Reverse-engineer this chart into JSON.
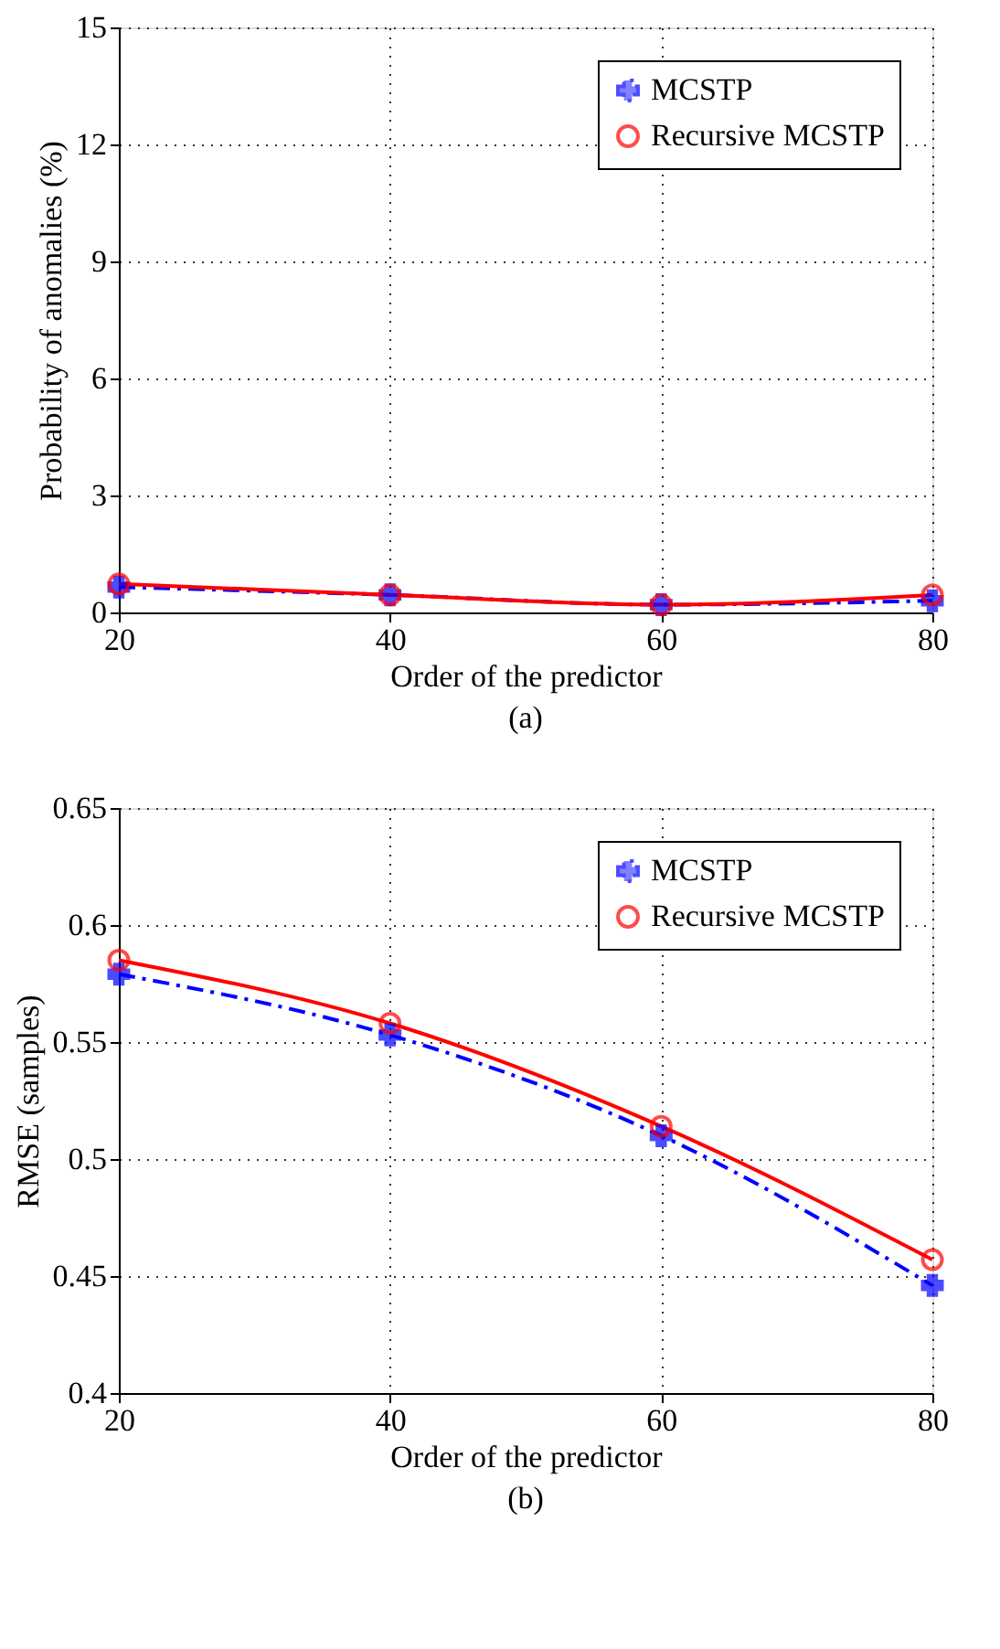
{
  "chart_data": [
    {
      "type": "line",
      "xlabel": "Order of the predictor",
      "ylabel": "Probability of anomalies (%)",
      "annotations": [
        "(a)"
      ],
      "x": [
        20,
        40,
        60,
        80
      ],
      "xlim": [
        20,
        80
      ],
      "xticks": [
        20,
        40,
        60,
        80
      ],
      "ylim": [
        0,
        15
      ],
      "yticks": [
        0,
        3,
        6,
        9,
        12,
        15
      ],
      "grid": true,
      "legend": "top right",
      "series": [
        {
          "name": "MCSTP",
          "color": "#0000ff",
          "marker": "cross",
          "line_style": "dashdot",
          "values": [
            0.65,
            0.45,
            0.2,
            0.3
          ]
        },
        {
          "name": "Recursive MCSTP",
          "color": "#ff0000",
          "marker": "circle",
          "line_style": "solid",
          "values": [
            0.73,
            0.45,
            0.2,
            0.45
          ]
        }
      ]
    },
    {
      "type": "line",
      "xlabel": "Order of the predictor",
      "ylabel": "RMSE (samples)",
      "annotations": [
        "(b)"
      ],
      "x": [
        20,
        40,
        60,
        80
      ],
      "xlim": [
        20,
        80
      ],
      "xticks": [
        20,
        40,
        60,
        80
      ],
      "ylim": [
        0.4,
        0.65
      ],
      "yticks": [
        0.4,
        0.45,
        0.5,
        0.55,
        0.6,
        0.65
      ],
      "grid": true,
      "legend": "top right",
      "series": [
        {
          "name": "MCSTP",
          "color": "#0000ff",
          "marker": "cross",
          "line_style": "dashdot",
          "values": [
            0.579,
            0.553,
            0.51,
            0.446
          ]
        },
        {
          "name": "Recursive MCSTP",
          "color": "#ff0000",
          "marker": "circle",
          "line_style": "solid",
          "values": [
            0.585,
            0.558,
            0.514,
            0.457
          ]
        }
      ]
    }
  ]
}
